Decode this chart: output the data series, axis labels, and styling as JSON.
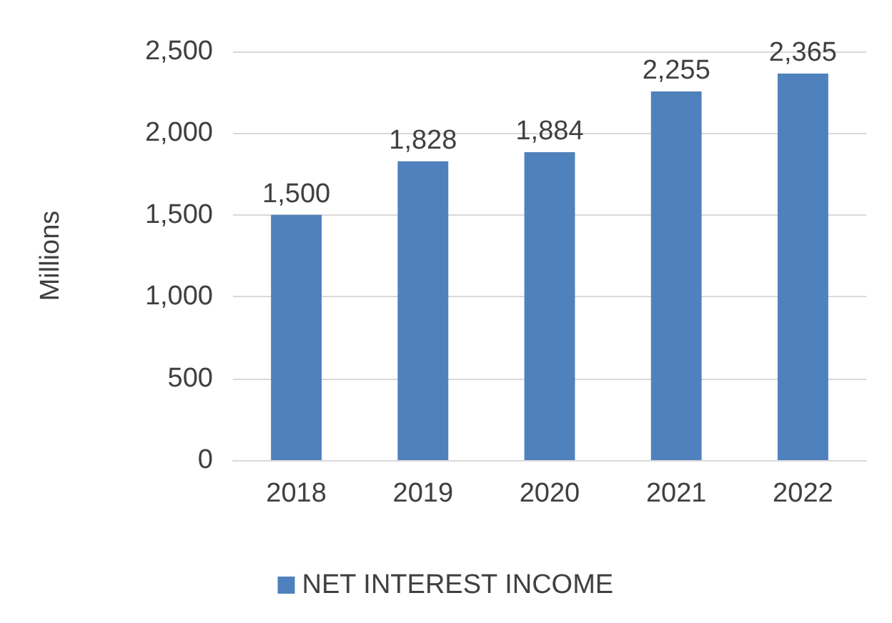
{
  "chart_data": {
    "type": "bar",
    "ylabel": "Millions",
    "categories": [
      "2018",
      "2019",
      "2020",
      "2021",
      "2022"
    ],
    "series": [
      {
        "name": "NET INTEREST INCOME",
        "color": "#4f81bd",
        "values": [
          1500,
          1828,
          1884,
          2255,
          2365
        ],
        "value_labels": [
          "1,500",
          "1,828",
          "1,884",
          "2,255",
          "2,365"
        ]
      }
    ],
    "ylim": [
      0,
      2500
    ],
    "yticks": [
      {
        "value": 0,
        "label": "0"
      },
      {
        "value": 500,
        "label": "500"
      },
      {
        "value": 1000,
        "label": "1,000"
      },
      {
        "value": 1500,
        "label": "1,500"
      },
      {
        "value": 2000,
        "label": "2,000"
      },
      {
        "value": 2500,
        "label": "2,500"
      }
    ],
    "grid": "y",
    "legend": "bottom"
  }
}
